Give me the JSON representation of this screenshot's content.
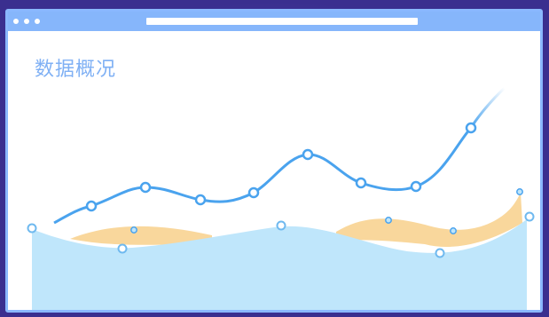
{
  "window": {
    "title": "数据概况"
  },
  "colors": {
    "background": "#3a2f8f",
    "window_border": "#8ab8ff",
    "titlebar": "#86b6fb",
    "title_text": "#7fb0f4",
    "line": "#4aa3ee",
    "area_blue": "#bfe6fb",
    "area_orange": "#f9d79c"
  },
  "titlebar": {
    "dots": [
      "window-dot",
      "window-dot",
      "window-dot"
    ]
  }
}
